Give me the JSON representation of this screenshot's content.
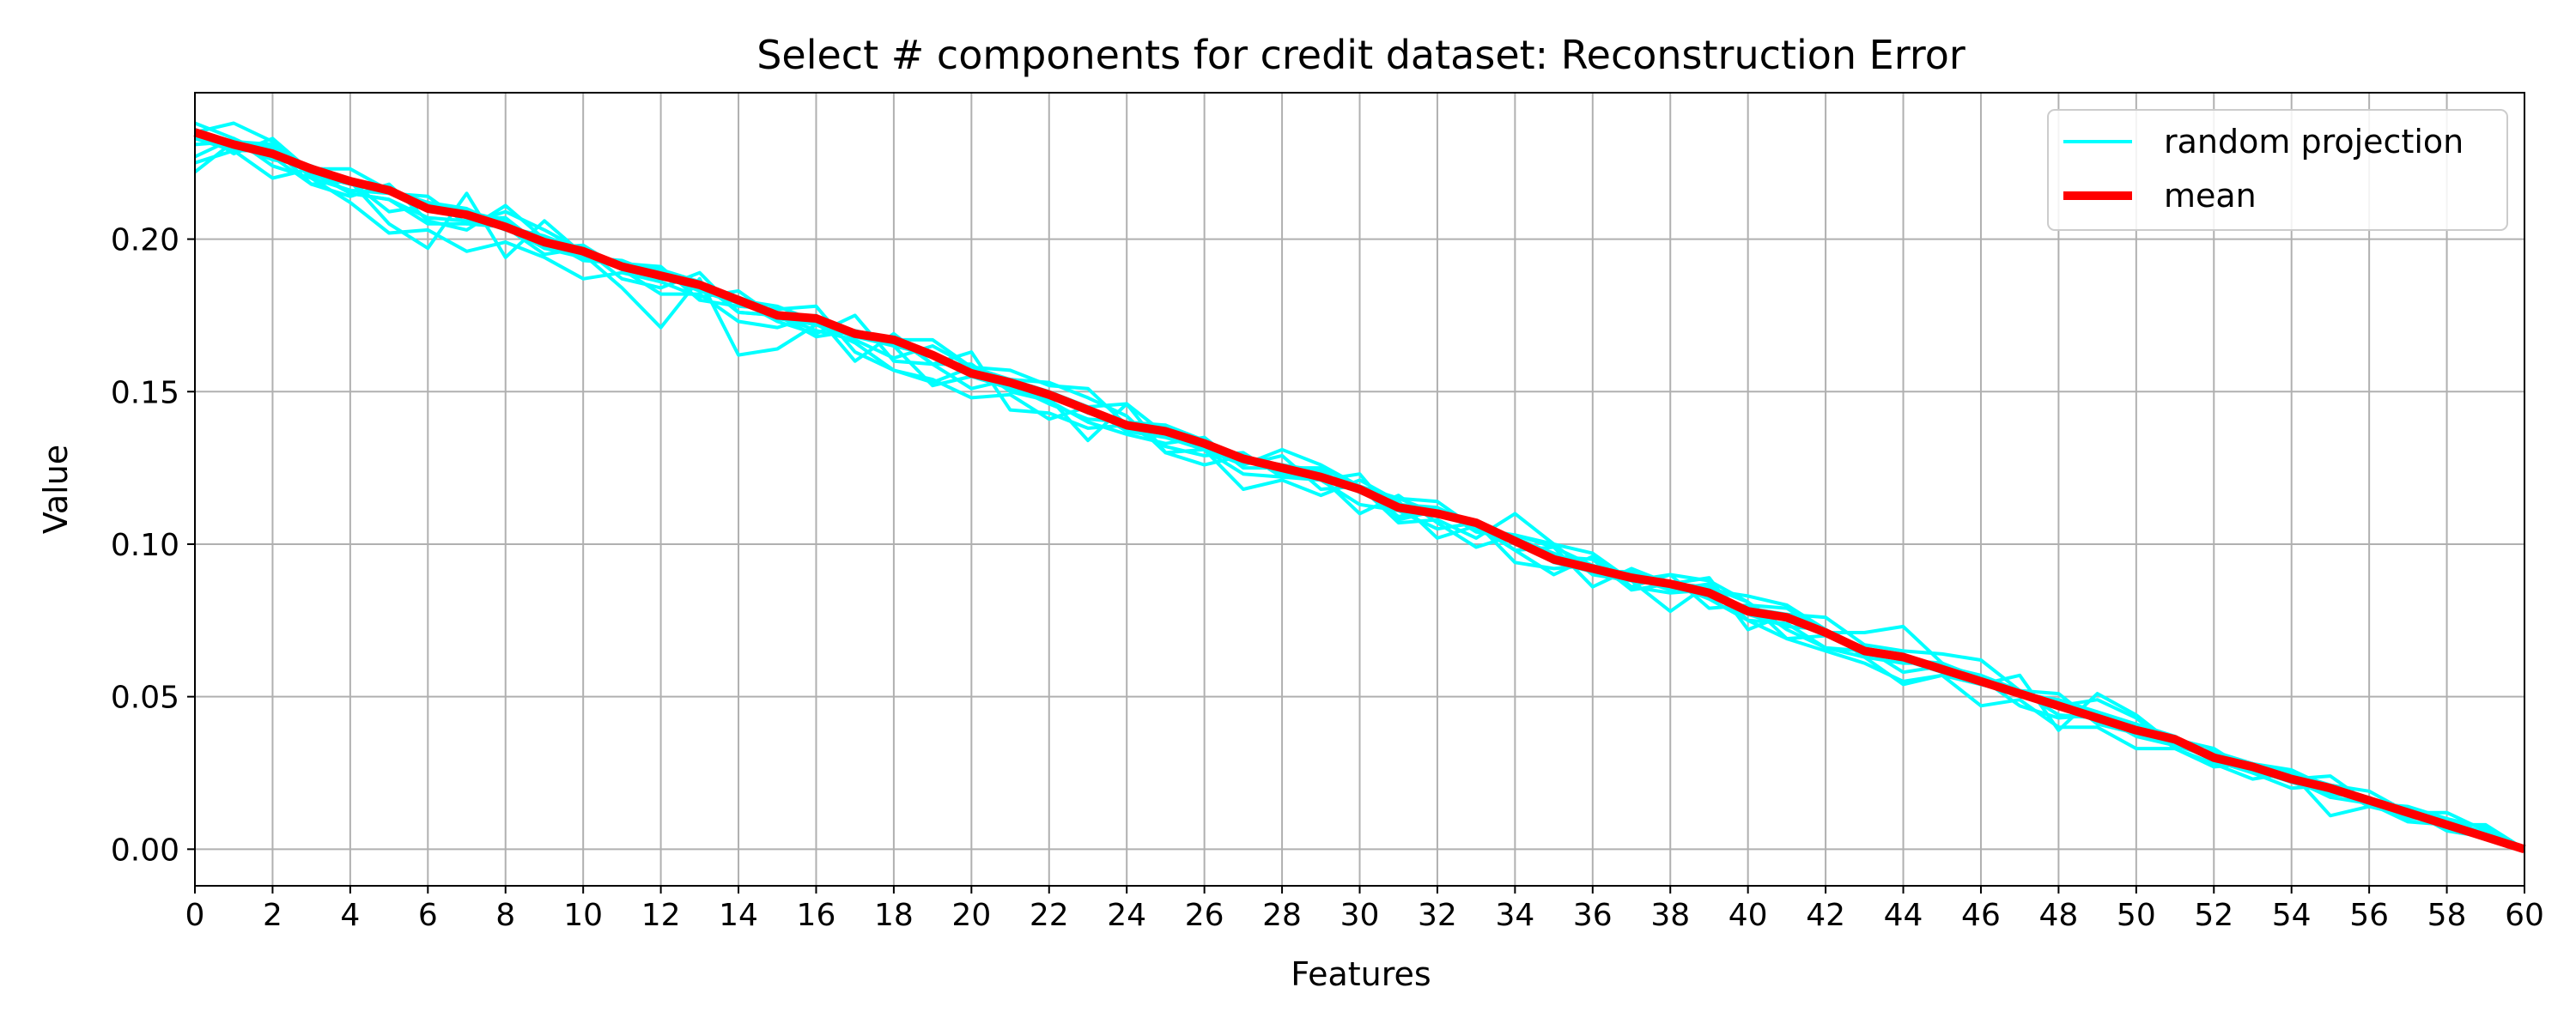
{
  "chart_data": {
    "type": "line",
    "title": "Select # components for credit dataset: Reconstruction Error",
    "xlabel": "Features",
    "ylabel": "Value",
    "xlim": [
      0,
      60
    ],
    "ylim": [
      -0.012,
      0.248
    ],
    "xticks": [
      0,
      2,
      4,
      6,
      8,
      10,
      12,
      14,
      16,
      18,
      20,
      22,
      24,
      26,
      28,
      30,
      32,
      34,
      36,
      38,
      40,
      42,
      44,
      46,
      48,
      50,
      52,
      54,
      56,
      58,
      60
    ],
    "yticks": [
      0.0,
      0.05,
      0.1,
      0.15,
      0.2
    ],
    "ytick_labels": [
      "0.00",
      "0.05",
      "0.10",
      "0.15",
      "0.20"
    ],
    "grid": true,
    "legend_position": "top-right",
    "colors": {
      "random": "#00ffff",
      "mean": "#ff0000",
      "grid": "#b0b0b0"
    },
    "random_series_label": "random projection",
    "x": [
      0,
      1,
      2,
      3,
      4,
      5,
      6,
      7,
      8,
      9,
      10,
      11,
      12,
      13,
      14,
      15,
      16,
      17,
      18,
      19,
      20,
      21,
      22,
      23,
      24,
      25,
      26,
      27,
      28,
      29,
      30,
      31,
      32,
      33,
      34,
      35,
      36,
      37,
      38,
      39,
      40,
      41,
      42,
      43,
      44,
      45,
      46,
      47,
      48,
      49,
      50,
      51,
      52,
      53,
      54,
      55,
      56,
      57,
      58,
      59,
      60
    ],
    "series": [
      {
        "name": "mean",
        "values": [
          0.235,
          0.231,
          0.228,
          0.223,
          0.219,
          0.216,
          0.21,
          0.208,
          0.204,
          0.199,
          0.196,
          0.191,
          0.188,
          0.185,
          0.18,
          0.175,
          0.174,
          0.169,
          0.167,
          0.162,
          0.156,
          0.153,
          0.149,
          0.144,
          0.139,
          0.137,
          0.133,
          0.128,
          0.125,
          0.122,
          0.118,
          0.112,
          0.11,
          0.107,
          0.101,
          0.095,
          0.092,
          0.089,
          0.087,
          0.084,
          0.078,
          0.076,
          0.071,
          0.065,
          0.063,
          0.059,
          0.055,
          0.051,
          0.047,
          0.043,
          0.039,
          0.036,
          0.03,
          0.027,
          0.023,
          0.02,
          0.016,
          0.012,
          0.008,
          0.004,
          0.0
        ]
      },
      {
        "name": "random projection",
        "values": [
          [
            0.222,
            0.232,
            0.231,
            0.221,
            0.219,
            0.205,
            0.197,
            0.215,
            0.194,
            0.206,
            0.195,
            0.184,
            0.171,
            0.187,
            0.162,
            0.164,
            0.172,
            0.166,
            0.157,
            0.154,
            0.148,
            0.149,
            0.141,
            0.145,
            0.146,
            0.136,
            0.131,
            0.118,
            0.121,
            0.116,
            0.121,
            0.114,
            0.102,
            0.106,
            0.098,
            0.099,
            0.086,
            0.092,
            0.087,
            0.082,
            0.075,
            0.074,
            0.066,
            0.063,
            0.054,
            0.057,
            0.054,
            0.057,
            0.039,
            0.051,
            0.044,
            0.034,
            0.032,
            0.028,
            0.025,
            0.019,
            0.015,
            0.009,
            0.008,
            0.008,
            0.0
          ],
          [
            0.231,
            0.232,
            0.23,
            0.218,
            0.214,
            0.218,
            0.206,
            0.203,
            0.211,
            0.2,
            0.193,
            0.192,
            0.191,
            0.18,
            0.178,
            0.177,
            0.178,
            0.163,
            0.157,
            0.153,
            0.158,
            0.151,
            0.148,
            0.145,
            0.137,
            0.135,
            0.131,
            0.128,
            0.126,
            0.122,
            0.11,
            0.116,
            0.107,
            0.099,
            0.103,
            0.1,
            0.09,
            0.088,
            0.078,
            0.087,
            0.075,
            0.069,
            0.065,
            0.061,
            0.055,
            0.057,
            0.047,
            0.049,
            0.04,
            0.04,
            0.033,
            0.033,
            0.028,
            0.023,
            0.025,
            0.011,
            0.014,
            0.012,
            0.01,
            0.007,
            0.0
          ],
          [
            0.235,
            0.238,
            0.232,
            0.22,
            0.216,
            0.215,
            0.214,
            0.205,
            0.209,
            0.203,
            0.196,
            0.19,
            0.188,
            0.184,
            0.18,
            0.173,
            0.169,
            0.175,
            0.16,
            0.159,
            0.151,
            0.154,
            0.153,
            0.148,
            0.142,
            0.13,
            0.131,
            0.126,
            0.131,
            0.126,
            0.119,
            0.107,
            0.108,
            0.102,
            0.11,
            0.1,
            0.097,
            0.088,
            0.09,
            0.079,
            0.08,
            0.079,
            0.071,
            0.071,
            0.073,
            0.061,
            0.054,
            0.051,
            0.049,
            0.045,
            0.041,
            0.036,
            0.033,
            0.025,
            0.02,
            0.021,
            0.019,
            0.012,
            0.012,
            0.006,
            0.0
          ],
          [
            0.227,
            0.233,
            0.224,
            0.22,
            0.212,
            0.202,
            0.203,
            0.196,
            0.199,
            0.194,
            0.187,
            0.189,
            0.186,
            0.181,
            0.183,
            0.174,
            0.172,
            0.168,
            0.165,
            0.152,
            0.155,
            0.151,
            0.148,
            0.134,
            0.146,
            0.13,
            0.126,
            0.129,
            0.123,
            0.121,
            0.113,
            0.111,
            0.105,
            0.107,
            0.098,
            0.09,
            0.096,
            0.086,
            0.09,
            0.088,
            0.081,
            0.069,
            0.07,
            0.066,
            0.058,
            0.06,
            0.057,
            0.052,
            0.051,
            0.041,
            0.038,
            0.035,
            0.029,
            0.025,
            0.023,
            0.024,
            0.015,
            0.01,
            0.01,
            0.005,
            0.0
          ],
          [
            0.225,
            0.229,
            0.229,
            0.223,
            0.223,
            0.216,
            0.212,
            0.207,
            0.207,
            0.197,
            0.198,
            0.19,
            0.182,
            0.182,
            0.173,
            0.171,
            0.175,
            0.16,
            0.169,
            0.159,
            0.163,
            0.144,
            0.143,
            0.138,
            0.139,
            0.139,
            0.131,
            0.123,
            0.122,
            0.123,
            0.118,
            0.115,
            0.114,
            0.105,
            0.103,
            0.099,
            0.093,
            0.09,
            0.087,
            0.089,
            0.072,
            0.077,
            0.076,
            0.067,
            0.065,
            0.064,
            0.062,
            0.052,
            0.047,
            0.049,
            0.043,
            0.033,
            0.027,
            0.028,
            0.026,
            0.02,
            0.015,
            0.014,
            0.01,
            0.005,
            0.0
          ],
          [
            0.238,
            0.233,
            0.227,
            0.218,
            0.219,
            0.209,
            0.211,
            0.209,
            0.206,
            0.197,
            0.197,
            0.187,
            0.184,
            0.189,
            0.176,
            0.175,
            0.168,
            0.17,
            0.167,
            0.167,
            0.158,
            0.157,
            0.152,
            0.151,
            0.139,
            0.132,
            0.129,
            0.13,
            0.122,
            0.121,
            0.123,
            0.108,
            0.111,
            0.107,
            0.094,
            0.092,
            0.093,
            0.086,
            0.084,
            0.085,
            0.083,
            0.08,
            0.072,
            0.064,
            0.064,
            0.058,
            0.055,
            0.052,
            0.044,
            0.043,
            0.041,
            0.037,
            0.03,
            0.026,
            0.025,
            0.021,
            0.014,
            0.011,
            0.01,
            0.004,
            0.0
          ],
          [
            0.233,
            0.229,
            0.22,
            0.223,
            0.215,
            0.213,
            0.205,
            0.205,
            0.204,
            0.195,
            0.197,
            0.191,
            0.187,
            0.186,
            0.176,
            0.175,
            0.17,
            0.167,
            0.161,
            0.165,
            0.158,
            0.154,
            0.15,
            0.145,
            0.137,
            0.139,
            0.134,
            0.126,
            0.129,
            0.118,
            0.119,
            0.115,
            0.11,
            0.106,
            0.1,
            0.096,
            0.095,
            0.085,
            0.087,
            0.086,
            0.081,
            0.072,
            0.066,
            0.065,
            0.062,
            0.061,
            0.056,
            0.047,
            0.043,
            0.044,
            0.037,
            0.034,
            0.03,
            0.026,
            0.023,
            0.017,
            0.015,
            0.013,
            0.006,
            0.004,
            0.0
          ],
          [
            0.236,
            0.228,
            0.233,
            0.222,
            0.215,
            0.213,
            0.207,
            0.206,
            0.204,
            0.201,
            0.196,
            0.191,
            0.19,
            0.186,
            0.18,
            0.178,
            0.173,
            0.168,
            0.168,
            0.159,
            0.159,
            0.15,
            0.147,
            0.14,
            0.136,
            0.133,
            0.135,
            0.125,
            0.125,
            0.125,
            0.119,
            0.109,
            0.112,
            0.104,
            0.102,
            0.097,
            0.092,
            0.089,
            0.085,
            0.087,
            0.077,
            0.073,
            0.072,
            0.063,
            0.061,
            0.061,
            0.054,
            0.051,
            0.048,
            0.045,
            0.038,
            0.036,
            0.031,
            0.027,
            0.022,
            0.018,
            0.017,
            0.011,
            0.009,
            0.004,
            0.0
          ],
          [
            0.234,
            0.23,
            0.229,
            0.221,
            0.218,
            0.215,
            0.212,
            0.21,
            0.204,
            0.197,
            0.194,
            0.193,
            0.188,
            0.183,
            0.179,
            0.175,
            0.172,
            0.169,
            0.165,
            0.162,
            0.155,
            0.152,
            0.146,
            0.141,
            0.14,
            0.139,
            0.132,
            0.127,
            0.126,
            0.124,
            0.117,
            0.113,
            0.112,
            0.106,
            0.101,
            0.094,
            0.091,
            0.091,
            0.086,
            0.083,
            0.079,
            0.077,
            0.071,
            0.065,
            0.062,
            0.058,
            0.056,
            0.051,
            0.047,
            0.042,
            0.039,
            0.036,
            0.03,
            0.026,
            0.022,
            0.019,
            0.016,
            0.012,
            0.008,
            0.004,
            0.0
          ],
          [
            0.234,
            0.231,
            0.226,
            0.224,
            0.219,
            0.216,
            0.211,
            0.208,
            0.203,
            0.199,
            0.197,
            0.19,
            0.188,
            0.185,
            0.181,
            0.176,
            0.174,
            0.168,
            0.166,
            0.162,
            0.156,
            0.153,
            0.149,
            0.143,
            0.139,
            0.137,
            0.133,
            0.128,
            0.125,
            0.123,
            0.117,
            0.112,
            0.11,
            0.107,
            0.101,
            0.096,
            0.093,
            0.089,
            0.087,
            0.084,
            0.078,
            0.076,
            0.071,
            0.066,
            0.063,
            0.059,
            0.055,
            0.051,
            0.047,
            0.043,
            0.039,
            0.036,
            0.03,
            0.027,
            0.023,
            0.02,
            0.016,
            0.012,
            0.008,
            0.004,
            0.0
          ]
        ]
      }
    ],
    "legend": [
      {
        "label": "random projection",
        "color": "#00ffff"
      },
      {
        "label": "mean",
        "color": "#ff0000"
      }
    ]
  }
}
